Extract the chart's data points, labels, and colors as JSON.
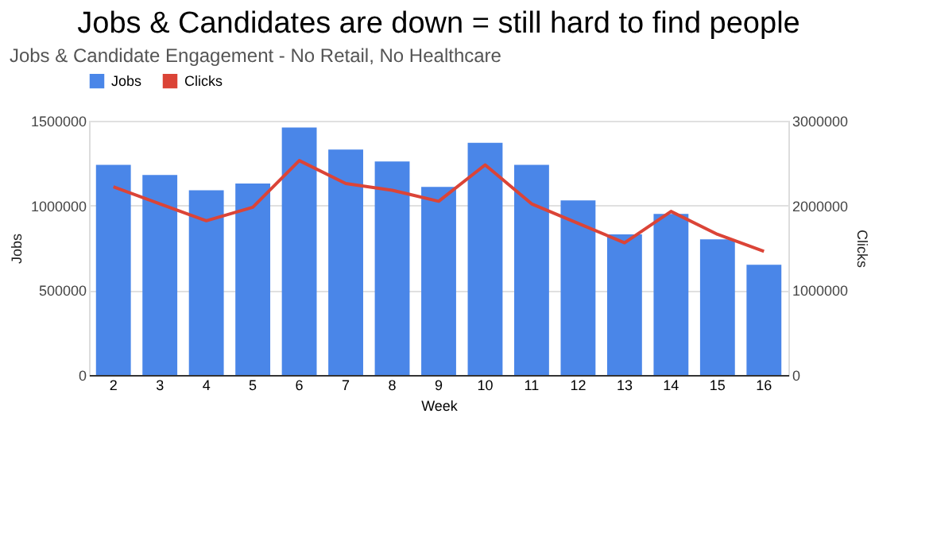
{
  "chart_data": {
    "type": "bar",
    "title": "Jobs & Candidates are down = still hard to find people",
    "subtitle": "Jobs & Candidate Engagement - No Retail, No Healthcare",
    "xlabel": "Week",
    "ylabel": "Jobs",
    "y2label": "Clicks",
    "categories": [
      "2",
      "3",
      "4",
      "5",
      "6",
      "7",
      "8",
      "9",
      "10",
      "11",
      "12",
      "13",
      "14",
      "15",
      "16"
    ],
    "series": [
      {
        "name": "Jobs",
        "color": "#4a86e8",
        "values": [
          1240000,
          1180000,
          1090000,
          1130000,
          1460000,
          1330000,
          1260000,
          1110000,
          1370000,
          1240000,
          1030000,
          830000,
          950000,
          800000,
          650000
        ]
      },
      {
        "name": "Clicks",
        "type": "line",
        "axis": "y2",
        "color": "#db4437",
        "values": [
          2220000,
          2020000,
          1820000,
          1980000,
          2530000,
          2260000,
          2180000,
          2050000,
          2480000,
          2020000,
          1790000,
          1560000,
          1930000,
          1660000,
          1460000
        ]
      }
    ],
    "ylim": [
      0,
      1500000
    ],
    "yticks": [
      0,
      500000,
      1000000,
      1500000
    ],
    "y2lim": [
      0,
      3000000
    ],
    "y2ticks": [
      0,
      1000000,
      2000000,
      3000000
    ],
    "grid": "y",
    "legend": "top",
    "line_style": "solid",
    "marker": "none"
  }
}
